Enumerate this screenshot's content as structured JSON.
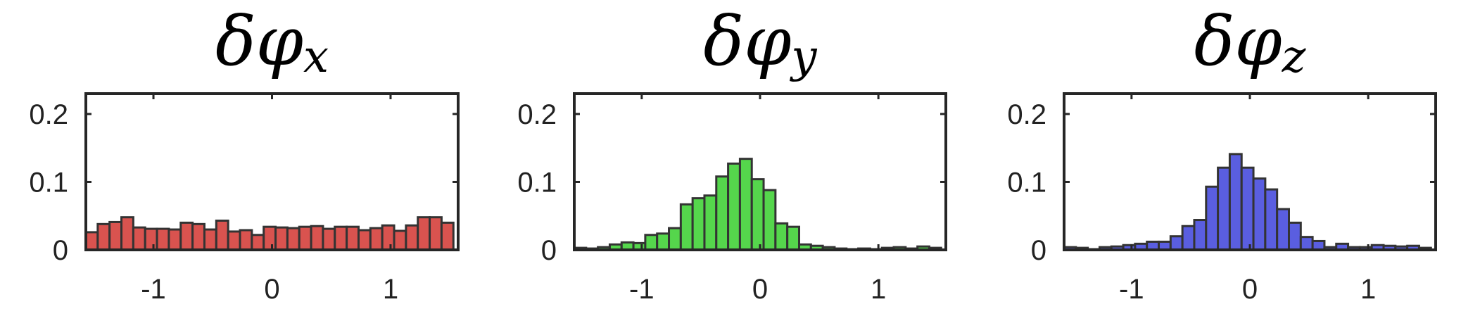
{
  "chart_data": [
    {
      "type": "bar",
      "title": "δφx",
      "title_parts": {
        "greek": "δφ",
        "subscript": "x"
      },
      "color": "#d9534f",
      "xlim": [
        -1.57,
        1.57
      ],
      "ylim": [
        0,
        0.23
      ],
      "xticks": [
        -1,
        0,
        1
      ],
      "xtick_labels": [
        "-1",
        "0",
        "1"
      ],
      "yticks": [
        0,
        0.1,
        0.2
      ],
      "ytick_labels": [
        "0",
        "0.1",
        "0.2"
      ],
      "bin_width": 0.1,
      "bin_start": -1.57,
      "values": [
        0.026,
        0.038,
        0.041,
        0.048,
        0.033,
        0.031,
        0.031,
        0.03,
        0.04,
        0.038,
        0.03,
        0.043,
        0.027,
        0.029,
        0.022,
        0.034,
        0.033,
        0.032,
        0.034,
        0.035,
        0.031,
        0.034,
        0.034,
        0.029,
        0.032,
        0.036,
        0.028,
        0.036,
        0.048,
        0.048,
        0.04
      ]
    },
    {
      "type": "bar",
      "title": "δφy",
      "title_parts": {
        "greek": "δφ",
        "subscript": "y"
      },
      "color": "#55d64c",
      "xlim": [
        -1.57,
        1.57
      ],
      "ylim": [
        0,
        0.23
      ],
      "xticks": [
        -1,
        0,
        1
      ],
      "xtick_labels": [
        "-1",
        "0",
        "1"
      ],
      "yticks": [
        0,
        0.1,
        0.2
      ],
      "ytick_labels": [
        "0",
        "0.1",
        "0.2"
      ],
      "bin_width": 0.1,
      "bin_start": -1.57,
      "values": [
        0.003,
        0.002,
        0.004,
        0.008,
        0.011,
        0.01,
        0.022,
        0.024,
        0.032,
        0.067,
        0.076,
        0.08,
        0.108,
        0.127,
        0.134,
        0.104,
        0.088,
        0.039,
        0.034,
        0.008,
        0.006,
        0.004,
        0.002,
        0.001,
        0.002,
        0.001,
        0.003,
        0.004,
        0.002,
        0.005,
        0.003
      ]
    },
    {
      "type": "bar",
      "title": "δφz",
      "title_parts": {
        "greek": "δφ",
        "subscript": "z"
      },
      "color": "#5a5ee0",
      "xlim": [
        -1.57,
        1.57
      ],
      "ylim": [
        0,
        0.23
      ],
      "xticks": [
        -1,
        0,
        1
      ],
      "xtick_labels": [
        "-1",
        "0",
        "1"
      ],
      "yticks": [
        0,
        0.1,
        0.2
      ],
      "ytick_labels": [
        "0",
        "0.1",
        "0.2"
      ],
      "bin_width": 0.1,
      "bin_start": -1.57,
      "values": [
        0.004,
        0.003,
        0.001,
        0.004,
        0.005,
        0.007,
        0.009,
        0.012,
        0.012,
        0.02,
        0.035,
        0.044,
        0.093,
        0.121,
        0.141,
        0.121,
        0.105,
        0.089,
        0.06,
        0.04,
        0.019,
        0.013,
        0.004,
        0.009,
        0.004,
        0.004,
        0.007,
        0.006,
        0.005,
        0.006,
        0.003
      ]
    }
  ]
}
